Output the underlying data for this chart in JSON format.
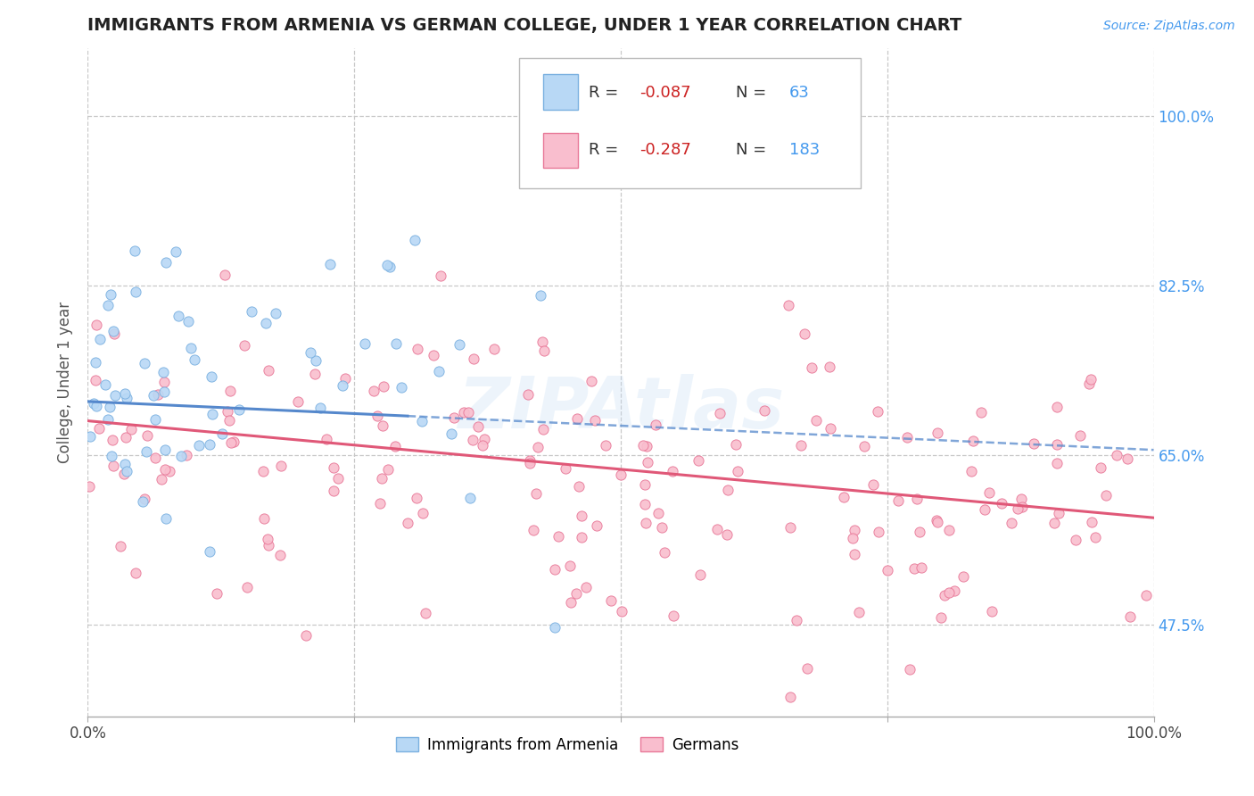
{
  "title": "IMMIGRANTS FROM ARMENIA VS GERMAN COLLEGE, UNDER 1 YEAR CORRELATION CHART",
  "source": "Source: ZipAtlas.com",
  "ylabel": "College, Under 1 year",
  "xlim": [
    0.0,
    1.0
  ],
  "ylim": [
    0.38,
    1.07
  ],
  "yticks": [
    0.475,
    0.65,
    0.825,
    1.0
  ],
  "ytick_labels": [
    "47.5%",
    "65.0%",
    "82.5%",
    "100.0%"
  ],
  "xtick_labels": [
    "0.0%",
    "100.0%"
  ],
  "series_armenia": {
    "name": "Immigrants from Armenia",
    "R": -0.087,
    "N": 63,
    "marker_face": "#b8d8f5",
    "marker_edge": "#7ab0e0",
    "line_color": "#5588cc",
    "seed": 42
  },
  "series_german": {
    "name": "Germans",
    "R": -0.287,
    "N": 183,
    "marker_face": "#f9bece",
    "marker_edge": "#e87898",
    "line_color": "#e05878",
    "seed": 7
  },
  "legend_R_values": [
    "-0.087",
    "-0.287"
  ],
  "legend_N_values": [
    "63",
    "183"
  ],
  "watermark": "ZIPAtlas",
  "background_color": "#ffffff",
  "grid_color": "#c8c8c8",
  "title_color": "#222222",
  "axis_label_color": "#555555",
  "tick_color_right": "#4499ee"
}
